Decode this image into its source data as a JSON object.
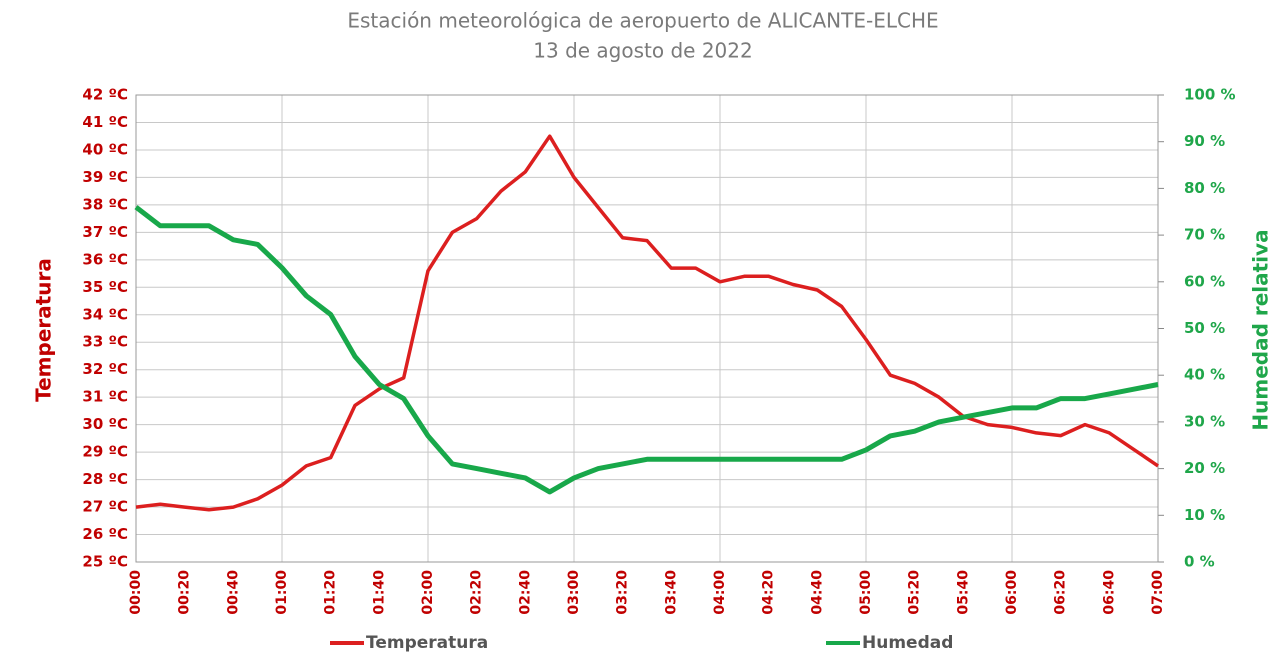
{
  "chart_data": {
    "type": "line",
    "title": "Estación meteorológica de aeropuerto de ALICANTE-ELCHE",
    "subtitle": "13 de agosto de 2022",
    "y_label": "Temperatura",
    "y2_label": "Humedad relativa",
    "categories": [
      "00:00",
      null,
      "00:20",
      null,
      "00:40",
      null,
      "01:00",
      null,
      "01:20",
      null,
      "01:40",
      null,
      "02:00",
      null,
      "02:20",
      null,
      "02:40",
      null,
      "03:00",
      null,
      "03:20",
      null,
      "03:40",
      null,
      "04:00",
      null,
      "04:20",
      null,
      "04:40",
      null,
      "05:00",
      null,
      "05:20",
      null,
      "05:40",
      null,
      "06:00",
      null,
      "06:20",
      null,
      "06:40",
      null,
      "07:00"
    ],
    "series": [
      {
        "name": "Temperatura",
        "color": "#dc1f1f",
        "values": [
          27.0,
          27.1,
          27.0,
          26.9,
          27.0,
          27.3,
          27.8,
          28.5,
          28.8,
          30.7,
          31.3,
          31.7,
          35.6,
          37.0,
          37.5,
          38.5,
          39.2,
          40.5,
          39.0,
          37.9,
          36.8,
          36.7,
          35.7,
          35.7,
          35.2,
          35.4,
          35.4,
          35.1,
          34.9,
          34.3,
          33.1,
          31.8,
          31.5,
          31.0,
          30.3,
          30.0,
          29.9,
          29.7,
          29.6,
          30.0,
          29.7,
          29.1,
          28.5
        ]
      },
      {
        "name": "Humedad",
        "color": "#18a84a",
        "axis": "y2",
        "values": [
          76,
          72,
          72,
          72,
          69,
          68,
          63,
          57,
          53,
          44,
          38,
          35,
          27,
          21,
          20,
          19,
          18,
          15,
          18,
          20,
          21,
          22,
          22,
          22,
          22,
          22,
          22,
          22,
          22,
          22,
          24,
          27,
          28,
          30,
          31,
          32,
          33,
          33,
          35,
          35,
          36,
          37,
          38
        ]
      }
    ],
    "ylim": [
      25,
      42
    ],
    "yticks": [
      {
        "value": 25,
        "label": "25 ºC"
      },
      {
        "value": 26,
        "label": "26 ºC"
      },
      {
        "value": 27,
        "label": "27 ºC"
      },
      {
        "value": 28,
        "label": "28 ºC"
      },
      {
        "value": 29,
        "label": "29 ºC"
      },
      {
        "value": 30,
        "label": "30 ºC"
      },
      {
        "value": 31,
        "label": "31 ºC"
      },
      {
        "value": 32,
        "label": "32 ºC"
      },
      {
        "value": 33,
        "label": "33 ºC"
      },
      {
        "value": 34,
        "label": "34 ºC"
      },
      {
        "value": 35,
        "label": "35 ºC"
      },
      {
        "value": 36,
        "label": "36 ºC"
      },
      {
        "value": 37,
        "label": "37 ºC"
      },
      {
        "value": 38,
        "label": "38 ºC"
      },
      {
        "value": 39,
        "label": "39 ºC"
      },
      {
        "value": 40,
        "label": "40 ºC"
      },
      {
        "value": 41,
        "label": "41 ºC"
      },
      {
        "value": 42,
        "label": "42 ºC"
      }
    ],
    "y2lim": [
      0,
      100
    ],
    "y2ticks": [
      {
        "value": 0,
        "label": "0 %"
      },
      {
        "value": 10,
        "label": "10 %"
      },
      {
        "value": 20,
        "label": "20 %"
      },
      {
        "value": 30,
        "label": "30 %"
      },
      {
        "value": 40,
        "label": "40 %"
      },
      {
        "value": 50,
        "label": "50 %"
      },
      {
        "value": 60,
        "label": "60 %"
      },
      {
        "value": 70,
        "label": "70 %"
      },
      {
        "value": 80,
        "label": "80 %"
      },
      {
        "value": 90,
        "label": "90 %"
      },
      {
        "value": 100,
        "label": "100 %"
      }
    ],
    "grid": true,
    "legend": "bottom"
  }
}
